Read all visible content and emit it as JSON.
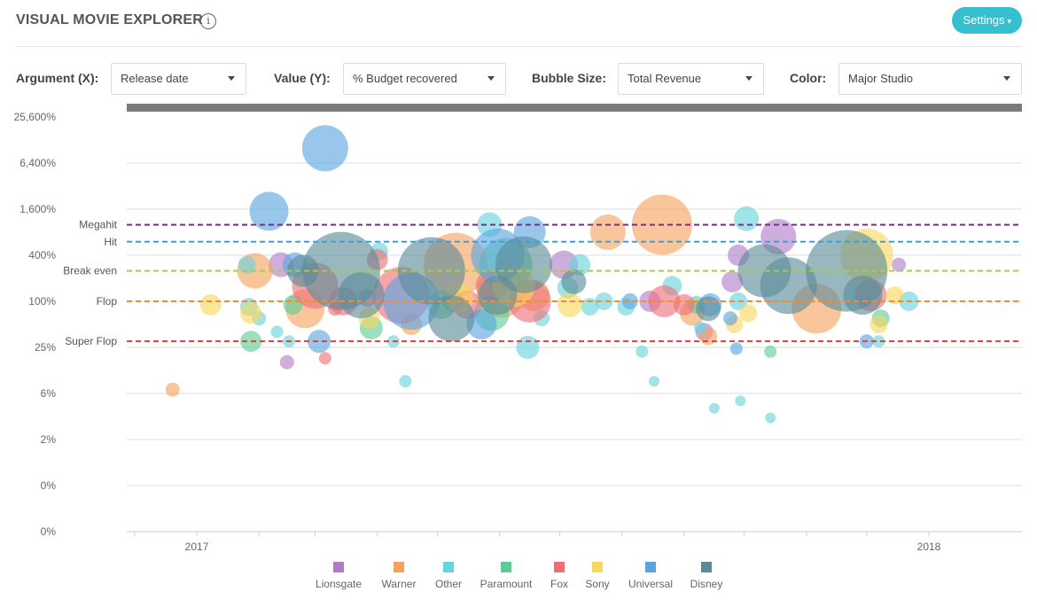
{
  "header": {
    "title": "VISUAL MOVIE EXPLORER",
    "info_icon": "info-circle-icon",
    "settings_label": "Settings"
  },
  "controls": {
    "x": {
      "label": "Argument (X):",
      "value": "Release date"
    },
    "y": {
      "label": "Value (Y):",
      "value": "% Budget recovered"
    },
    "size": {
      "label": "Bubble Size:",
      "value": "Total Revenue"
    },
    "color": {
      "label": "Color:",
      "value": "Major Studio"
    }
  },
  "legend": [
    {
      "name": "Lionsgate",
      "color": "#b07cc6"
    },
    {
      "name": "Warner",
      "color": "#f5a25d"
    },
    {
      "name": "Other",
      "color": "#66d3dd"
    },
    {
      "name": "Paramount",
      "color": "#5ccb96"
    },
    {
      "name": "Fox",
      "color": "#ef6f78"
    },
    {
      "name": "Sony",
      "color": "#f9d65c"
    },
    {
      "name": "Universal",
      "color": "#5aa5e0"
    },
    {
      "name": "Disney",
      "color": "#5b8b97"
    }
  ],
  "chart_data": {
    "type": "scatter",
    "bubble": true,
    "xlabel": "",
    "ylabel": "",
    "x_ticks": [
      "2017",
      "2018"
    ],
    "y_ticks": [
      "25,600%",
      "6,400%",
      "1,600%",
      "400%",
      "100%",
      "25%",
      "6%",
      "2%",
      "0%",
      "0%"
    ],
    "y_scale": "log4",
    "grid": true,
    "reference_lines": [
      {
        "name": "Megahit",
        "value": 1000,
        "color": "#7b2d8e"
      },
      {
        "name": "Hit",
        "value": 600,
        "color": "#3a9fd8"
      },
      {
        "name": "Break even",
        "value": 250,
        "color": "#a8cf3a"
      },
      {
        "name": "Flop",
        "value": 100,
        "color": "#f08a3c"
      },
      {
        "name": "Super Flop",
        "value": 30,
        "color": "#d9413a"
      }
    ],
    "series": [
      {
        "name": "Lionsgate",
        "color": "#b07cc6",
        "points": [
          {
            "x": "2017-02-15",
            "y": 16,
            "r": 8
          },
          {
            "x": "2017-02-12",
            "y": 300,
            "r": 14
          },
          {
            "x": "2017-05-09",
            "y": 100,
            "r": 12
          },
          {
            "x": "2017-07-03",
            "y": 300,
            "r": 16
          },
          {
            "x": "2017-08-15",
            "y": 100,
            "r": 12
          },
          {
            "x": "2017-09-28",
            "y": 400,
            "r": 12
          },
          {
            "x": "2017-09-25",
            "y": 180,
            "r": 12
          },
          {
            "x": "2017-10-18",
            "y": 700,
            "r": 20
          },
          {
            "x": "2017-12-17",
            "y": 300,
            "r": 8
          },
          {
            "x": "2017-09-11",
            "y": 40,
            "r": 10
          },
          {
            "x": "2017-03-27",
            "y": 110,
            "r": 10
          }
        ]
      },
      {
        "name": "Warner",
        "color": "#f5a25d",
        "points": [
          {
            "x": "2016-12-20",
            "y": 7,
            "r": 8
          },
          {
            "x": "2017-01-30",
            "y": 250,
            "r": 20
          },
          {
            "x": "2017-02-24",
            "y": 80,
            "r": 22
          },
          {
            "x": "2017-04-18",
            "y": 50,
            "r": 12
          },
          {
            "x": "2017-05-10",
            "y": 300,
            "r": 36
          },
          {
            "x": "2017-06-02",
            "y": 130,
            "r": 28
          },
          {
            "x": "2017-07-25",
            "y": 800,
            "r": 20
          },
          {
            "x": "2017-08-21",
            "y": 1000,
            "r": 34
          },
          {
            "x": "2017-09-05",
            "y": 70,
            "r": 14
          },
          {
            "x": "2017-09-13",
            "y": 35,
            "r": 10
          },
          {
            "x": "2017-11-06",
            "y": 80,
            "r": 28
          },
          {
            "x": "2017-06-18",
            "y": 120,
            "r": 18
          }
        ]
      },
      {
        "name": "Other",
        "color": "#66d3dd",
        "points": [
          {
            "x": "2017-01-26",
            "y": 300,
            "r": 10
          },
          {
            "x": "2017-01-27",
            "y": 85,
            "r": 10
          },
          {
            "x": "2017-02-01",
            "y": 60,
            "r": 8
          },
          {
            "x": "2017-02-10",
            "y": 40,
            "r": 7
          },
          {
            "x": "2017-02-16",
            "y": 30,
            "r": 7
          },
          {
            "x": "2017-04-09",
            "y": 30,
            "r": 7
          },
          {
            "x": "2017-04-15",
            "y": 9,
            "r": 7
          },
          {
            "x": "2017-04-02",
            "y": 450,
            "r": 10
          },
          {
            "x": "2017-05-27",
            "y": 1000,
            "r": 14
          },
          {
            "x": "2017-06-22",
            "y": 60,
            "r": 9
          },
          {
            "x": "2017-06-15",
            "y": 25,
            "r": 13
          },
          {
            "x": "2017-07-11",
            "y": 300,
            "r": 12
          },
          {
            "x": "2017-07-05",
            "y": 150,
            "r": 12
          },
          {
            "x": "2017-07-16",
            "y": 85,
            "r": 10
          },
          {
            "x": "2017-07-23",
            "y": 100,
            "r": 10
          },
          {
            "x": "2017-08-03",
            "y": 85,
            "r": 10
          },
          {
            "x": "2017-08-11",
            "y": 22,
            "r": 7
          },
          {
            "x": "2017-08-17",
            "y": 9,
            "r": 6
          },
          {
            "x": "2017-08-26",
            "y": 160,
            "r": 11
          },
          {
            "x": "2017-09-09",
            "y": 45,
            "r": 7
          },
          {
            "x": "2017-09-16",
            "y": 4,
            "r": 6
          },
          {
            "x": "2017-09-29",
            "y": 5,
            "r": 6
          },
          {
            "x": "2017-10-14",
            "y": 3,
            "r": 6
          },
          {
            "x": "2017-09-28",
            "y": 100,
            "r": 10
          },
          {
            "x": "2017-12-22",
            "y": 100,
            "r": 11
          },
          {
            "x": "2017-12-07",
            "y": 30,
            "r": 7
          },
          {
            "x": "2017-10-02",
            "y": 1200,
            "r": 14
          }
        ]
      },
      {
        "name": "Paramount",
        "color": "#5ccb96",
        "points": [
          {
            "x": "2017-01-28",
            "y": 30,
            "r": 12
          },
          {
            "x": "2017-02-18",
            "y": 90,
            "r": 11
          },
          {
            "x": "2017-03-29",
            "y": 45,
            "r": 13
          },
          {
            "x": "2017-05-03",
            "y": 90,
            "r": 16
          },
          {
            "x": "2017-05-28",
            "y": 70,
            "r": 20
          },
          {
            "x": "2017-06-04",
            "y": 300,
            "r": 30
          },
          {
            "x": "2017-09-07",
            "y": 90,
            "r": 10
          },
          {
            "x": "2017-10-14",
            "y": 22,
            "r": 7
          },
          {
            "x": "2017-12-08",
            "y": 60,
            "r": 10
          }
        ]
      },
      {
        "name": "Fox",
        "color": "#ef6f78",
        "points": [
          {
            "x": "2017-03-01",
            "y": 160,
            "r": 26
          },
          {
            "x": "2017-03-15",
            "y": 100,
            "r": 16
          },
          {
            "x": "2017-03-11",
            "y": 80,
            "r": 8
          },
          {
            "x": "2017-03-06",
            "y": 18,
            "r": 7
          },
          {
            "x": "2017-04-01",
            "y": 350,
            "r": 12
          },
          {
            "x": "2017-04-13",
            "y": 120,
            "r": 32
          },
          {
            "x": "2017-05-16",
            "y": 90,
            "r": 16
          },
          {
            "x": "2017-05-28",
            "y": 160,
            "r": 18
          },
          {
            "x": "2017-06-16",
            "y": 100,
            "r": 24
          },
          {
            "x": "2017-08-22",
            "y": 100,
            "r": 18
          },
          {
            "x": "2017-09-01",
            "y": 90,
            "r": 12
          },
          {
            "x": "2017-12-03",
            "y": 120,
            "r": 18
          }
        ]
      },
      {
        "name": "Sony",
        "color": "#f9d65c",
        "points": [
          {
            "x": "2017-01-08",
            "y": 90,
            "r": 12
          },
          {
            "x": "2017-01-28",
            "y": 70,
            "r": 12
          },
          {
            "x": "2017-03-28",
            "y": 60,
            "r": 12
          },
          {
            "x": "2017-05-12",
            "y": 110,
            "r": 16
          },
          {
            "x": "2017-06-08",
            "y": 160,
            "r": 24
          },
          {
            "x": "2017-07-06",
            "y": 90,
            "r": 14
          },
          {
            "x": "2017-09-26",
            "y": 50,
            "r": 10
          },
          {
            "x": "2017-10-03",
            "y": 70,
            "r": 10
          },
          {
            "x": "2017-12-01",
            "y": 400,
            "r": 30
          },
          {
            "x": "2017-12-15",
            "y": 120,
            "r": 10
          },
          {
            "x": "2017-12-07",
            "y": 50,
            "r": 10
          }
        ]
      },
      {
        "name": "Universal",
        "color": "#5aa5e0",
        "points": [
          {
            "x": "2017-02-06",
            "y": 1500,
            "r": 22
          },
          {
            "x": "2017-03-06",
            "y": 10000,
            "r": 26
          },
          {
            "x": "2017-02-19",
            "y": 300,
            "r": 14
          },
          {
            "x": "2017-03-03",
            "y": 30,
            "r": 13
          },
          {
            "x": "2017-04-18",
            "y": 100,
            "r": 32
          },
          {
            "x": "2017-05-31",
            "y": 400,
            "r": 30
          },
          {
            "x": "2017-06-16",
            "y": 800,
            "r": 18
          },
          {
            "x": "2017-05-23",
            "y": 50,
            "r": 17
          },
          {
            "x": "2017-08-05",
            "y": 100,
            "r": 9
          },
          {
            "x": "2017-09-14",
            "y": 90,
            "r": 13
          },
          {
            "x": "2017-09-24",
            "y": 60,
            "r": 8
          },
          {
            "x": "2017-09-27",
            "y": 24,
            "r": 7
          },
          {
            "x": "2017-12-01",
            "y": 30,
            "r": 8
          }
        ]
      },
      {
        "name": "Disney",
        "color": "#5b8b97",
        "points": [
          {
            "x": "2017-02-23",
            "y": 250,
            "r": 18
          },
          {
            "x": "2017-03-14",
            "y": 250,
            "r": 44
          },
          {
            "x": "2017-03-24",
            "y": 120,
            "r": 26
          },
          {
            "x": "2017-04-28",
            "y": 250,
            "r": 38
          },
          {
            "x": "2017-05-08",
            "y": 60,
            "r": 26
          },
          {
            "x": "2017-05-31",
            "y": 120,
            "r": 22
          },
          {
            "x": "2017-06-13",
            "y": 300,
            "r": 32
          },
          {
            "x": "2017-07-08",
            "y": 180,
            "r": 14
          },
          {
            "x": "2017-09-13",
            "y": 80,
            "r": 14
          },
          {
            "x": "2017-10-11",
            "y": 250,
            "r": 30
          },
          {
            "x": "2017-10-23",
            "y": 160,
            "r": 32
          },
          {
            "x": "2017-11-21",
            "y": 250,
            "r": 46
          },
          {
            "x": "2017-11-29",
            "y": 120,
            "r": 22
          }
        ]
      }
    ]
  }
}
